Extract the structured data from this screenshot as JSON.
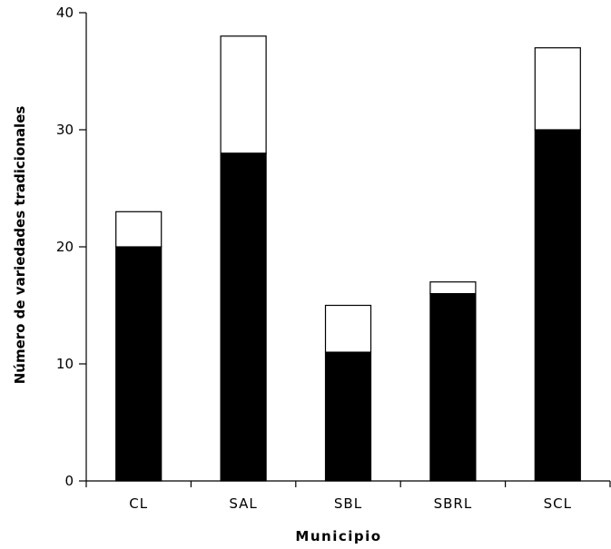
{
  "chart_data": {
    "type": "bar",
    "stacked": true,
    "categories": [
      "CL",
      "SAL",
      "SBL",
      "SBRL",
      "SCL"
    ],
    "series": [
      {
        "values": [
          20,
          28,
          11,
          16,
          30
        ],
        "color": "#000000"
      },
      {
        "values": [
          3,
          10,
          4,
          1,
          7
        ],
        "color": "#ffffff"
      }
    ],
    "totals": [
      23,
      38,
      15,
      17,
      37
    ],
    "xlabel": "Municipio",
    "ylabel": "Número de variedades tradicionales",
    "ylim": [
      0,
      40
    ],
    "yticks": [
      0,
      10,
      20,
      30,
      40
    ],
    "grid": false,
    "legend": "none"
  }
}
